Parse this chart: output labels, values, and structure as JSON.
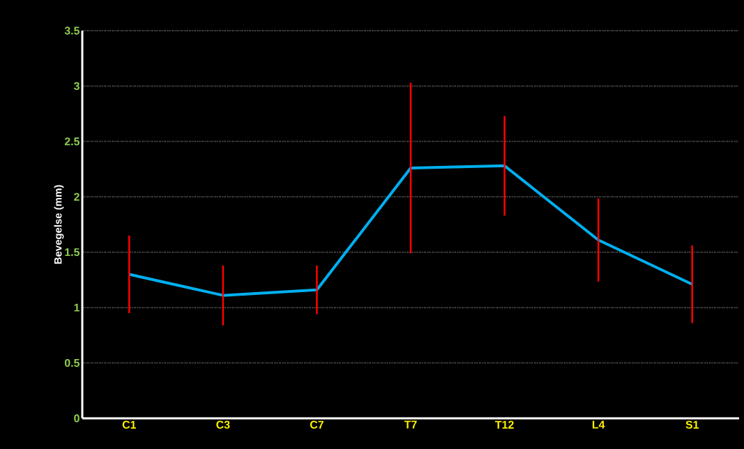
{
  "chart_data": {
    "type": "line",
    "ylabel": "Bevegelse (mm)",
    "categories": [
      "C1",
      "C3",
      "C7",
      "T7",
      "T12",
      "L4",
      "S1"
    ],
    "series": [
      {
        "color": "#00b0f0",
        "values": [
          1.3,
          1.11,
          1.16,
          2.26,
          2.28,
          1.61,
          1.21
        ],
        "errors": [
          0.35,
          0.27,
          0.22,
          0.77,
          0.45,
          0.375,
          0.35
        ]
      }
    ],
    "ylim": [
      0,
      3.5
    ],
    "yticks": [
      0,
      0.5,
      1,
      1.5,
      2,
      2.5,
      3,
      3.5
    ],
    "grid": "y",
    "marker": "none",
    "line_style": "solid",
    "legend": false
  }
}
